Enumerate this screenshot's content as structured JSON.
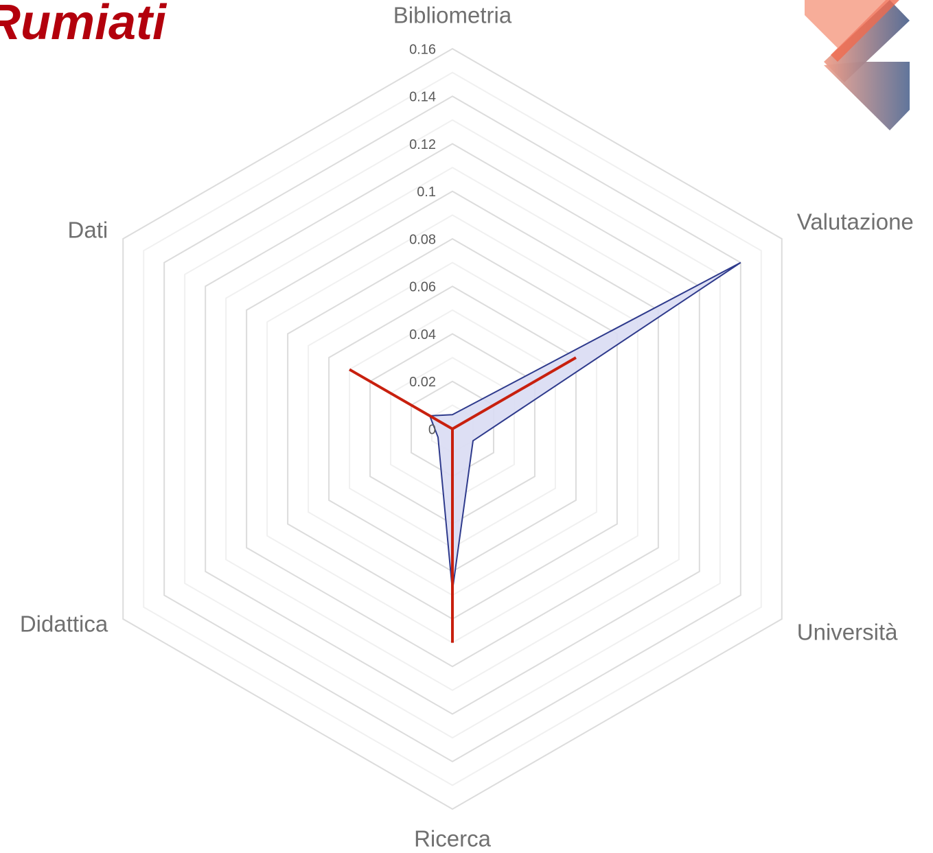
{
  "chart_data": {
    "type": "radar",
    "title": "Rumiati",
    "categories": [
      "Bibliometria",
      "Valutazione",
      "Università",
      "Ricerca",
      "Didattica",
      "Dati"
    ],
    "series": [
      {
        "color": "#2e3a8c",
        "fill": "#d9dbf3",
        "values": [
          0.006,
          0.14,
          0.01,
          0.068,
          0.007,
          0.011
        ]
      },
      {
        "color": "#c8200e",
        "values": [
          0,
          0.06,
          0,
          0.09,
          0,
          0.05
        ]
      }
    ],
    "ylim": [
      0,
      0.16
    ],
    "yticks": [
      0,
      0.02,
      0.04,
      0.06,
      0.08,
      0.1,
      0.12,
      0.14,
      0.16
    ],
    "grid": true
  }
}
